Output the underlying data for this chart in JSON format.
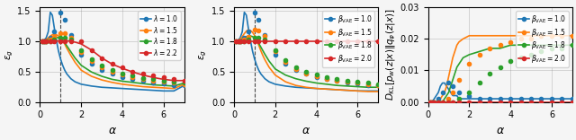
{
  "colors": [
    "#1f77b4",
    "#ff7f0e",
    "#2ca02c",
    "#d62728"
  ],
  "alpha_points": [
    0.1,
    0.2,
    0.3,
    0.5,
    0.7,
    1.0,
    1.2,
    1.5,
    2.0,
    2.5,
    3.0,
    3.5,
    4.0,
    4.5,
    5.0,
    5.5,
    6.0,
    6.5,
    7.0
  ],
  "alpha_dense": [
    0.05,
    0.1,
    0.15,
    0.2,
    0.3,
    0.4,
    0.5,
    0.6,
    0.7,
    0.8,
    0.9,
    1.0,
    1.1,
    1.2,
    1.3,
    1.4,
    1.5,
    1.7,
    2.0,
    2.5,
    3.0,
    3.5,
    4.0,
    4.5,
    5.0,
    5.5,
    6.0,
    6.5,
    7.0
  ],
  "vline_x": 1.0,
  "subplot1": {
    "title": "",
    "ylabel": "$\\varepsilon_g$",
    "xlabel": "$\\alpha$",
    "ylim": [
      0.0,
      1.55
    ],
    "yticks": [
      0.0,
      0.5,
      1.0,
      1.5
    ],
    "legend_labels": [
      "$\\lambda=1.0$",
      "$\\lambda=1.5$",
      "$\\lambda=1.8$",
      "$\\lambda=2.2$"
    ],
    "curves": [
      [
        1.0,
        1.0,
        1.0,
        1.05,
        1.15,
        1.47,
        1.35,
        1.1,
        0.78,
        0.62,
        0.52,
        0.46,
        0.41,
        0.37,
        0.35,
        0.32,
        0.3,
        0.28,
        0.27
      ],
      [
        1.0,
        1.0,
        1.0,
        1.02,
        1.07,
        1.12,
        1.12,
        1.05,
        0.82,
        0.67,
        0.57,
        0.5,
        0.45,
        0.41,
        0.37,
        0.35,
        0.33,
        0.31,
        0.29
      ],
      [
        1.0,
        1.0,
        1.0,
        1.0,
        1.02,
        1.05,
        1.05,
        1.02,
        0.85,
        0.7,
        0.6,
        0.53,
        0.47,
        0.43,
        0.39,
        0.37,
        0.35,
        0.33,
        0.31
      ],
      [
        1.0,
        1.0,
        1.0,
        1.0,
        1.0,
        1.0,
        1.0,
        1.0,
        0.99,
        0.85,
        0.72,
        0.63,
        0.56,
        0.5,
        0.46,
        0.43,
        0.4,
        0.37,
        0.35
      ]
    ],
    "curve_smooth": [
      [
        0.99,
        0.99,
        1.0,
        1.01,
        1.05,
        1.15,
        1.47,
        1.42,
        1.2,
        1.0,
        0.83,
        0.7,
        0.6,
        0.52,
        0.46,
        0.42,
        0.38,
        0.33,
        0.29,
        0.26,
        0.24,
        0.23,
        0.22,
        0.21,
        0.2,
        0.19,
        0.18,
        0.18,
        0.27
      ],
      [
        0.99,
        0.99,
        1.0,
        1.0,
        1.02,
        1.05,
        1.08,
        1.1,
        1.11,
        1.1,
        1.08,
        1.05,
        1.0,
        0.95,
        0.88,
        0.82,
        0.76,
        0.65,
        0.52,
        0.42,
        0.36,
        0.32,
        0.29,
        0.27,
        0.25,
        0.24,
        0.23,
        0.22,
        0.29
      ],
      [
        0.99,
        0.99,
        1.0,
        1.0,
        1.01,
        1.02,
        1.04,
        1.05,
        1.06,
        1.06,
        1.05,
        1.04,
        1.01,
        0.97,
        0.92,
        0.87,
        0.82,
        0.72,
        0.6,
        0.49,
        0.42,
        0.37,
        0.34,
        0.32,
        0.3,
        0.28,
        0.27,
        0.26,
        0.31
      ],
      [
        1.0,
        1.0,
        1.0,
        1.0,
        1.0,
        1.0,
        1.0,
        1.0,
        1.0,
        1.0,
        1.0,
        1.0,
        1.0,
        1.0,
        1.0,
        1.0,
        0.99,
        0.98,
        0.95,
        0.85,
        0.72,
        0.62,
        0.55,
        0.49,
        0.44,
        0.4,
        0.37,
        0.35,
        0.35
      ]
    ]
  },
  "subplot2": {
    "title": "",
    "ylabel": "$\\varepsilon_g$",
    "xlabel": "$\\alpha$",
    "ylim": [
      0.0,
      1.55
    ],
    "yticks": [
      0.0,
      0.5,
      1.0,
      1.5
    ],
    "legend_labels": [
      "$\\beta_{\\mathrm{VAE}}=1.0$",
      "$\\beta_{\\mathrm{VAE}}=1.5$",
      "$\\beta_{\\mathrm{VAE}}=1.8$",
      "$\\beta_{\\mathrm{VAE}}=2.0$"
    ],
    "curves": [
      [
        1.0,
        1.0,
        1.0,
        1.05,
        1.15,
        1.47,
        1.35,
        1.1,
        0.78,
        0.62,
        0.52,
        0.46,
        0.41,
        0.37,
        0.35,
        0.32,
        0.3,
        0.28,
        0.27
      ],
      [
        1.0,
        1.0,
        1.0,
        1.02,
        1.07,
        1.18,
        1.17,
        1.08,
        0.83,
        0.65,
        0.54,
        0.47,
        0.42,
        0.38,
        0.35,
        0.33,
        0.31,
        0.29,
        0.27
      ],
      [
        1.0,
        1.0,
        1.0,
        1.0,
        1.02,
        1.05,
        1.05,
        1.02,
        0.85,
        0.68,
        0.57,
        0.5,
        0.45,
        0.41,
        0.38,
        0.35,
        0.33,
        0.31,
        0.29
      ],
      [
        1.0,
        1.0,
        1.0,
        1.0,
        1.0,
        1.0,
        1.0,
        1.0,
        1.0,
        1.0,
        1.0,
        1.0,
        1.0,
        1.0,
        1.0,
        1.0,
        1.0,
        1.0,
        1.0
      ]
    ],
    "curve_smooth": [
      [
        0.99,
        0.99,
        1.0,
        1.01,
        1.05,
        1.15,
        1.47,
        1.42,
        1.2,
        1.0,
        0.83,
        0.7,
        0.6,
        0.52,
        0.46,
        0.42,
        0.38,
        0.33,
        0.29,
        0.26,
        0.24,
        0.23,
        0.22,
        0.21,
        0.2,
        0.19,
        0.18,
        0.18,
        0.18
      ],
      [
        0.99,
        0.99,
        1.0,
        1.0,
        1.03,
        1.07,
        1.12,
        1.16,
        1.18,
        1.17,
        1.14,
        1.09,
        1.02,
        0.93,
        0.84,
        0.76,
        0.69,
        0.57,
        0.44,
        0.33,
        0.27,
        0.24,
        0.22,
        0.21,
        0.2,
        0.19,
        0.18,
        0.17,
        0.17
      ],
      [
        0.99,
        0.99,
        1.0,
        1.0,
        1.01,
        1.03,
        1.05,
        1.07,
        1.08,
        1.08,
        1.07,
        1.05,
        1.01,
        0.96,
        0.9,
        0.84,
        0.78,
        0.67,
        0.54,
        0.44,
        0.38,
        0.34,
        0.31,
        0.29,
        0.27,
        0.26,
        0.25,
        0.24,
        0.24
      ],
      [
        1.0,
        1.0,
        1.0,
        1.0,
        1.0,
        1.0,
        1.0,
        1.0,
        1.0,
        1.0,
        1.0,
        1.0,
        1.0,
        1.0,
        1.0,
        1.0,
        1.0,
        1.0,
        1.0,
        1.0,
        1.0,
        1.0,
        1.0,
        1.0,
        1.0,
        1.0,
        1.0,
        1.0,
        1.0
      ]
    ]
  },
  "subplot3": {
    "title": "",
    "ylabel": "$D_{\\mathrm{KL}}[p_w(z|x) \\| q_\\varphi(z|x)]$",
    "xlabel": "$\\alpha$",
    "ylim": [
      0.0,
      0.03
    ],
    "yticks": [
      0.0,
      0.01,
      0.02,
      0.03
    ],
    "legend_labels": [
      "$\\beta_{\\mathrm{VAE}}=1.0$",
      "$\\beta_{\\mathrm{VAE}}=1.5$",
      "$\\beta_{\\mathrm{VAE}}=1.8$",
      "$\\beta_{\\mathrm{VAE}}=2.0$"
    ],
    "curves": [
      [
        0.0,
        0.0,
        0.0,
        0.001,
        0.003,
        0.006,
        0.005,
        0.003,
        0.002,
        0.001,
        0.001,
        0.001,
        0.001,
        0.001,
        0.001,
        0.001,
        0.001,
        0.001,
        0.001
      ],
      [
        0.0,
        0.0,
        0.0,
        0.0,
        0.0,
        0.001,
        0.003,
        0.007,
        0.012,
        0.015,
        0.017,
        0.018,
        0.019,
        0.02,
        0.02,
        0.021,
        0.021,
        0.021,
        0.021
      ],
      [
        0.0,
        0.0,
        0.0,
        0.0,
        0.0,
        0.0,
        0.0,
        0.001,
        0.003,
        0.006,
        0.009,
        0.011,
        0.013,
        0.014,
        0.015,
        0.016,
        0.017,
        0.017,
        0.018
      ],
      [
        0.0,
        0.0,
        0.0,
        0.0,
        0.0,
        0.0,
        0.0,
        0.0,
        0.0,
        0.0,
        0.0,
        0.0,
        0.0,
        0.0,
        0.0,
        0.0,
        0.0,
        0.0,
        0.0
      ]
    ],
    "curve_smooth": [
      [
        0.0,
        0.0,
        0.0,
        0.0,
        0.001,
        0.002,
        0.003,
        0.005,
        0.006,
        0.006,
        0.005,
        0.004,
        0.003,
        0.002,
        0.002,
        0.002,
        0.001,
        0.001,
        0.001,
        0.001,
        0.001,
        0.001,
        0.001,
        0.001,
        0.001,
        0.001,
        0.001,
        0.001,
        0.001
      ],
      [
        0.0,
        0.0,
        0.0,
        0.0,
        0.0,
        0.0,
        0.0,
        0.001,
        0.002,
        0.003,
        0.005,
        0.008,
        0.011,
        0.014,
        0.016,
        0.018,
        0.019,
        0.02,
        0.021,
        0.021,
        0.021,
        0.021,
        0.021,
        0.021,
        0.021,
        0.021,
        0.021,
        0.021,
        0.021
      ],
      [
        0.0,
        0.0,
        0.0,
        0.0,
        0.0,
        0.0,
        0.0,
        0.0,
        0.0,
        0.001,
        0.002,
        0.003,
        0.005,
        0.007,
        0.009,
        0.011,
        0.012,
        0.014,
        0.015,
        0.016,
        0.017,
        0.017,
        0.018,
        0.018,
        0.018,
        0.018,
        0.018,
        0.018,
        0.018
      ],
      [
        0.0,
        0.0,
        0.0,
        0.0,
        0.0,
        0.0,
        0.0,
        0.0,
        0.0,
        0.0,
        0.0,
        0.0,
        0.0,
        0.0,
        0.0,
        0.0,
        0.0,
        0.0,
        0.0,
        0.0,
        0.0,
        0.0,
        0.0,
        0.0,
        0.0,
        0.0,
        0.0,
        0.0,
        0.0
      ]
    ]
  },
  "marker": "o",
  "markersize": 3,
  "linewidth": 1.2,
  "errorbar_size": 0.015,
  "grid": true,
  "grid_alpha": 0.4,
  "figure_bgcolor": "#f5f5f5"
}
